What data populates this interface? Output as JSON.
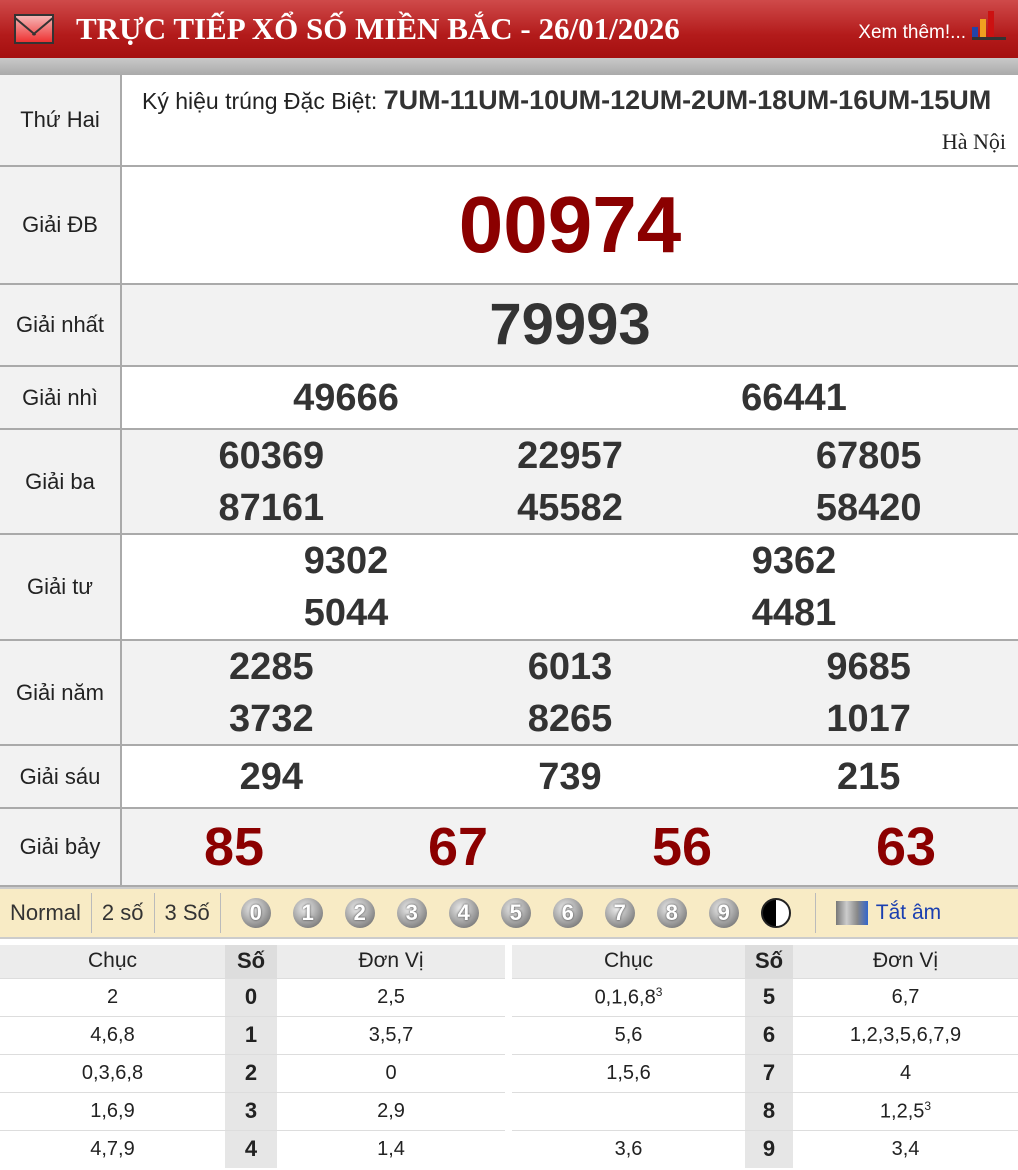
{
  "header": {
    "title": "TRỰC TIẾP XỔ SỐ MIỀN BẮC - 26/01/2026",
    "more_link": "Xem thêm!..."
  },
  "info": {
    "day": "Thứ Hai",
    "code_label": "Ký hiệu trúng Đặc Biệt:",
    "code_value": "7UM-11UM-10UM-12UM-2UM-18UM-16UM-15UM",
    "city": "Hà Nội"
  },
  "prizes": [
    {
      "label": "Giải ĐB",
      "cols": 1,
      "size": 80,
      "color": "#8b0000",
      "height": 118,
      "numbers": [
        "00974"
      ]
    },
    {
      "label": "Giải nhất",
      "cols": 1,
      "size": 58,
      "color": "#333333",
      "height": 82,
      "numbers": [
        "79993"
      ]
    },
    {
      "label": "Giải nhì",
      "cols": 2,
      "size": 38,
      "color": "#333333",
      "height": 63,
      "numbers": [
        "49666",
        "66441"
      ]
    },
    {
      "label": "Giải ba",
      "cols": 3,
      "size": 38,
      "color": "#333333",
      "height": 105,
      "numbers": [
        "60369",
        "22957",
        "67805",
        "87161",
        "45582",
        "58420"
      ]
    },
    {
      "label": "Giải tư",
      "cols": 2,
      "size": 38,
      "color": "#333333",
      "height": 106,
      "numbers": [
        "9302",
        "9362",
        "5044",
        "4481"
      ]
    },
    {
      "label": "Giải năm",
      "cols": 3,
      "size": 38,
      "color": "#333333",
      "height": 105,
      "numbers": [
        "2285",
        "6013",
        "9685",
        "3732",
        "8265",
        "1017"
      ]
    },
    {
      "label": "Giải sáu",
      "cols": 3,
      "size": 38,
      "color": "#333333",
      "height": 63,
      "numbers": [
        "294",
        "739",
        "215"
      ]
    },
    {
      "label": "Giải bảy",
      "cols": 4,
      "size": 54,
      "color": "#8b0000",
      "height": 78,
      "numbers": [
        "85",
        "67",
        "56",
        "63"
      ]
    }
  ],
  "toolbar": {
    "modes": [
      "Normal",
      "2 số",
      "3 Số"
    ],
    "digits": [
      "0",
      "1",
      "2",
      "3",
      "4",
      "5",
      "6",
      "7",
      "8",
      "9"
    ],
    "mute": "Tắt âm"
  },
  "loto": {
    "headers": [
      "Chục",
      "Số",
      "Đơn Vị"
    ],
    "left": [
      [
        "2",
        "0",
        "2,5"
      ],
      [
        "4,6,8",
        "1",
        "3,5,7"
      ],
      [
        "0,3,6,8",
        "2",
        "0"
      ],
      [
        "1,6,9",
        "3",
        "2,9"
      ],
      [
        "4,7,9",
        "4",
        "1,4"
      ]
    ],
    "right": [
      [
        "0,1,6,8|3",
        "5",
        "6,7"
      ],
      [
        "5,6",
        "6",
        "1,2,3,5,6,7,9"
      ],
      [
        "1,5,6",
        "7",
        "4"
      ],
      [
        "",
        "8",
        "1,2,5|3"
      ],
      [
        "3,6",
        "9",
        "3,4"
      ]
    ]
  },
  "colors": {
    "header_red": "#b31b1b",
    "special_red": "#8b0000",
    "toolbar_bg": "#f8ebc5"
  }
}
